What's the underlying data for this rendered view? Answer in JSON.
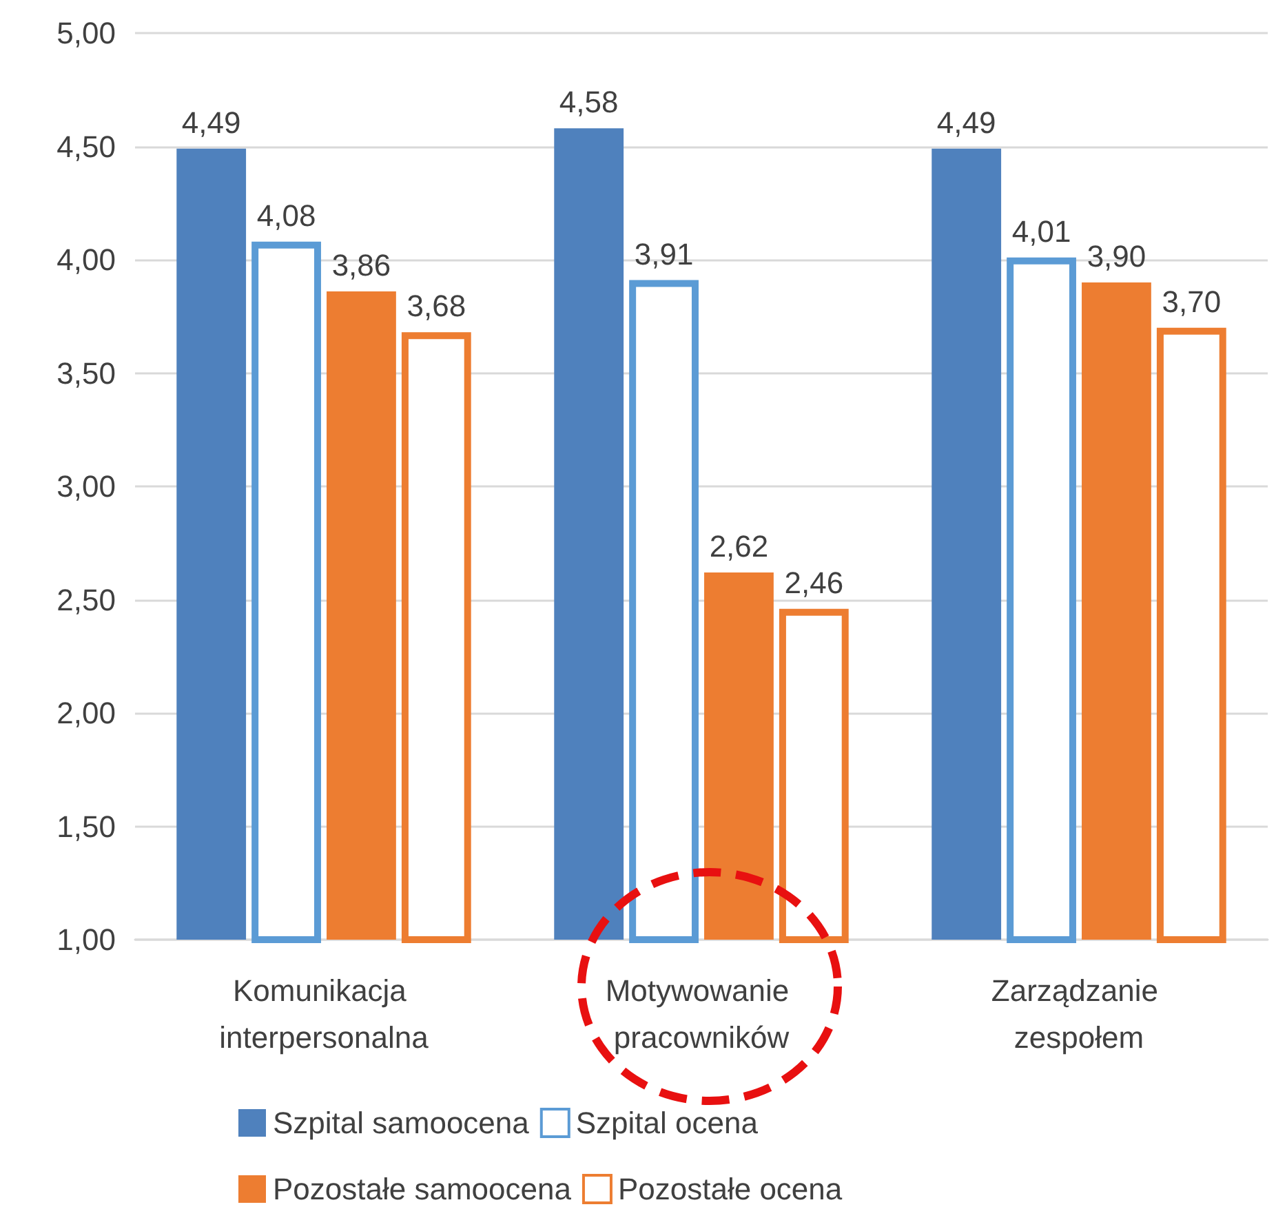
{
  "chart_data": {
    "type": "bar",
    "categories": [
      "Komunikacja interpersonalna",
      "Motywowanie pracowników",
      "Zarządzanie zespołem"
    ],
    "series": [
      {
        "name": "Szpital samoocena",
        "color": "#4f81bd",
        "values": [
          4.49,
          4.58,
          4.49
        ],
        "value_labels": [
          "4,49",
          "4,58",
          "4,49"
        ]
      },
      {
        "name": "Szpital ocena",
        "color": "#5b9bd5",
        "line_style": "solid",
        "values": [
          4.08,
          3.91,
          4.01
        ],
        "value_labels": [
          "4,08",
          "3,91",
          "4,01"
        ]
      },
      {
        "name": "Pozostałe samoocena",
        "color": "#ed7d31",
        "values": [
          3.86,
          2.62,
          3.9
        ],
        "value_labels": [
          "3,86",
          "2,62",
          "3,90"
        ]
      },
      {
        "name": "Pozostałe ocena",
        "color": "#ed7d31",
        "line_style": "solid",
        "values": [
          3.68,
          2.46,
          3.7
        ],
        "value_labels": [
          "3,68",
          "2,46",
          "3,70"
        ]
      }
    ],
    "ylim": [
      1,
      5
    ],
    "yticks": [
      {
        "value": 1,
        "label": "1,00"
      },
      {
        "value": 1.5,
        "label": "1,50"
      },
      {
        "value": 2,
        "label": "2,00"
      },
      {
        "value": 2.5,
        "label": "2,50"
      },
      {
        "value": 3,
        "label": "3,00"
      },
      {
        "value": 3.5,
        "label": "3,50"
      },
      {
        "value": 4,
        "label": "4,00"
      },
      {
        "value": 4.5,
        "label": "4,50"
      },
      {
        "value": 5,
        "label": "5,00"
      }
    ],
    "grid": "y",
    "legend": "bottom"
  }
}
